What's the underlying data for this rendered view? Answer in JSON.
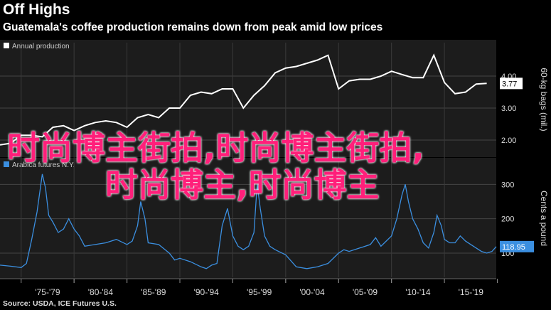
{
  "header": {
    "title": "Off Highs",
    "subtitle": "Guatemala's coffee production remains down from peak amid low prices"
  },
  "source": "Source: USDA, ICE Futures U.S.",
  "watermark": {
    "line1": "时尚博主街拍,时尚博主街拍,",
    "line2": "时尚博主,时尚博主"
  },
  "colors": {
    "background": "#000000",
    "panel": "#1c1c1c",
    "grid": "#555555",
    "production_line": "#ffffff",
    "futures_line": "#3b8fe0",
    "watermark": "#ff1f7a"
  },
  "chart_data": [
    {
      "type": "line",
      "title": "Annual production",
      "legend": "top-left",
      "series": [
        {
          "name": "Annual production",
          "color": "#ffffff"
        }
      ],
      "x_range": [
        1973,
        2019.9
      ],
      "y_axis": {
        "label": "60-kg bags (mil.)",
        "ylim": [
          1.6,
          4.6
        ],
        "ticks": [
          2.0,
          3.0,
          4.0
        ],
        "tick_labels": [
          "2.00",
          "3.00",
          "4.00"
        ],
        "side": "right",
        "last_value_label": "3.77"
      },
      "x": [
        1973,
        1974,
        1975,
        1976,
        1977,
        1978,
        1979,
        1980,
        1981,
        1982,
        1983,
        1984,
        1985,
        1986,
        1987,
        1988,
        1989,
        1990,
        1991,
        1992,
        1993,
        1994,
        1995,
        1996,
        1997,
        1998,
        1999,
        2000,
        2001,
        2002,
        2003,
        2004,
        2005,
        2006,
        2007,
        2008,
        2009,
        2010,
        2011,
        2012,
        2013,
        2014,
        2015,
        2016,
        2017,
        2018,
        2019
      ],
      "y": [
        1.85,
        1.9,
        2.15,
        2.15,
        2.1,
        2.4,
        2.45,
        2.3,
        2.45,
        2.55,
        2.6,
        2.55,
        2.4,
        2.7,
        2.8,
        2.7,
        3.0,
        3.0,
        3.4,
        3.5,
        3.45,
        3.6,
        3.6,
        3.0,
        3.4,
        3.7,
        4.1,
        4.25,
        4.3,
        4.4,
        4.5,
        4.65,
        3.6,
        3.85,
        3.9,
        3.9,
        4.0,
        4.15,
        4.05,
        3.95,
        3.95,
        4.65,
        3.8,
        3.45,
        3.5,
        3.75,
        3.77
      ]
    },
    {
      "type": "line",
      "title": "Arabica futures N.Y.",
      "legend": "top-left",
      "series": [
        {
          "name": "Arabica futures N.Y.",
          "color": "#3b8fe0"
        }
      ],
      "x_range": [
        1973,
        2019.9
      ],
      "y_axis": {
        "label": "Cents a pound",
        "ylim": [
          40,
          340
        ],
        "ticks": [
          100,
          200,
          300
        ],
        "tick_labels": [
          "100",
          "200",
          "300"
        ],
        "side": "right",
        "last_value_label": "118.95"
      },
      "x_axis": {
        "tick_labels": [
          "'75-'79",
          "'80-'84",
          "'85-'89",
          "'90-'94",
          "'95-'99",
          "'00-'04",
          "'05-'09",
          "'10-'14",
          "'15-'19"
        ]
      },
      "x": [
        1973,
        1974,
        1975,
        1975.5,
        1976,
        1976.5,
        1977,
        1977.3,
        1977.6,
        1978,
        1978.5,
        1979,
        1979.5,
        1980,
        1980.5,
        1981,
        1982,
        1983,
        1984,
        1985,
        1985.5,
        1986,
        1986.3,
        1986.7,
        1987,
        1988,
        1989,
        1989.5,
        1990,
        1991,
        1992,
        1992.5,
        1993,
        1993.5,
        1994,
        1994.5,
        1995,
        1995.5,
        1996,
        1996.5,
        1997,
        1997.3,
        1997.6,
        1998,
        1998.5,
        1999,
        2000,
        2001,
        2002,
        2003,
        2004,
        2005,
        2005.5,
        2006,
        2007,
        2008,
        2008.5,
        2009,
        2009.5,
        2010,
        2010.5,
        2011,
        2011.3,
        2011.6,
        2012,
        2012.5,
        2013,
        2013.5,
        2014,
        2014.3,
        2014.7,
        2015,
        2015.5,
        2016,
        2016.5,
        2017,
        2018,
        2018.5,
        2019,
        2019.5,
        2019.9
      ],
      "y": [
        65,
        62,
        58,
        70,
        140,
        220,
        330,
        290,
        210,
        190,
        160,
        170,
        200,
        170,
        150,
        120,
        125,
        130,
        140,
        125,
        135,
        180,
        250,
        200,
        130,
        125,
        100,
        80,
        85,
        75,
        60,
        55,
        65,
        70,
        180,
        230,
        150,
        120,
        110,
        120,
        160,
        300,
        230,
        150,
        120,
        110,
        95,
        60,
        55,
        60,
        70,
        100,
        110,
        105,
        115,
        125,
        145,
        120,
        135,
        150,
        200,
        270,
        300,
        250,
        200,
        170,
        130,
        115,
        160,
        210,
        180,
        140,
        130,
        130,
        150,
        135,
        115,
        105,
        100,
        105,
        118.95
      ]
    }
  ]
}
